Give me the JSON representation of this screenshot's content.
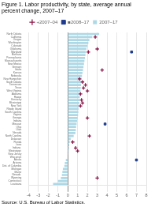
{
  "chart_data": {
    "type": "bar",
    "orientation": "horizontal",
    "title": "Figure 1. Labor productivity, by state, average annual percent change, 2007–17",
    "annotations": [
      "Source: U.S. Bureau of Labor Statistics."
    ],
    "categories": [
      "North Dakota",
      "California",
      "Oregon",
      "Washington",
      "Colorado",
      "Oklahoma",
      "Maryland",
      "Montana",
      "Pennsylvania",
      "Massachusetts",
      "New Mexico",
      "Vermont",
      "Idaho",
      "Kansas",
      "Nebraska",
      "New Hampshire",
      "South Dakota",
      "Tennessee",
      "Texas",
      "West Virginia",
      "Alabama",
      "Hawaii",
      "Kentucky",
      "Mississippi",
      "New York",
      "Rhode Island",
      "South Carolina",
      "Virginia",
      "Georgia",
      "Indiana",
      "Missouri",
      "Ohio",
      "Utah",
      "Nevada",
      "North Carolina",
      "Delaware",
      "Florida",
      "Iowa",
      "Indiana ",
      "Mississippi ",
      "New Jersey",
      "Wisconsin",
      "Alaska",
      "Arizona",
      "Dist. of Columbia",
      "Michigan",
      "Maine",
      "Nevada ",
      "Wyoming",
      "Connecticut",
      "Louisiana"
    ],
    "series": [
      {
        "name": "2007–17",
        "type": "bar",
        "color": "#add8e6",
        "values": [
          3.2,
          2.5,
          2.2,
          2.1,
          2.0,
          1.9,
          1.85,
          1.8,
          1.75,
          1.7,
          1.65,
          1.6,
          1.55,
          1.5,
          1.45,
          1.4,
          1.38,
          1.35,
          1.32,
          1.3,
          1.25,
          1.22,
          1.2,
          1.18,
          1.15,
          1.1,
          1.08,
          1.05,
          1.0,
          0.95,
          0.9,
          0.85,
          0.82,
          0.78,
          0.6,
          0.3,
          0.2,
          0.15,
          0.12,
          0.08,
          0.05,
          0.0,
          -0.2,
          -0.3,
          -0.35,
          -0.5,
          -0.55,
          -0.6,
          -0.7,
          -1.0,
          -1.5
        ]
      },
      {
        "name": "+2007–04",
        "type": "scatter",
        "marker": "plus",
        "color": "#8b1a4a",
        "values": [
          null,
          2.8,
          null,
          null,
          null,
          3.0,
          2.1,
          null,
          null,
          null,
          null,
          null,
          3.5,
          null,
          null,
          1.2,
          1.5,
          1.8,
          1.6,
          2.0,
          1.3,
          null,
          1.4,
          1.5,
          1.3,
          null,
          null,
          null,
          2.0,
          null,
          null,
          null,
          null,
          null,
          2.2,
          null,
          0.5,
          null,
          0.8,
          1.0,
          null,
          null,
          null,
          null,
          null,
          null,
          null,
          null,
          3.0,
          null,
          null
        ]
      },
      {
        "name": "■2008–17",
        "type": "scatter",
        "marker": "square",
        "color": "#1f3b8c",
        "values": [
          null,
          null,
          null,
          null,
          null,
          null,
          6.5,
          null,
          null,
          null,
          null,
          null,
          null,
          null,
          null,
          null,
          null,
          null,
          null,
          null,
          null,
          null,
          null,
          null,
          null,
          null,
          null,
          null,
          null,
          null,
          3.8,
          null,
          null,
          null,
          null,
          null,
          null,
          null,
          null,
          null,
          null,
          null,
          7.0,
          null,
          null,
          null,
          null,
          null,
          null,
          null,
          null
        ]
      }
    ],
    "xlim": [
      -4,
      8
    ],
    "xticks": [
      -4,
      -3,
      -2,
      -1,
      0,
      1,
      2,
      3,
      4,
      5,
      6,
      7,
      8
    ],
    "grid": true,
    "legend": "top"
  }
}
